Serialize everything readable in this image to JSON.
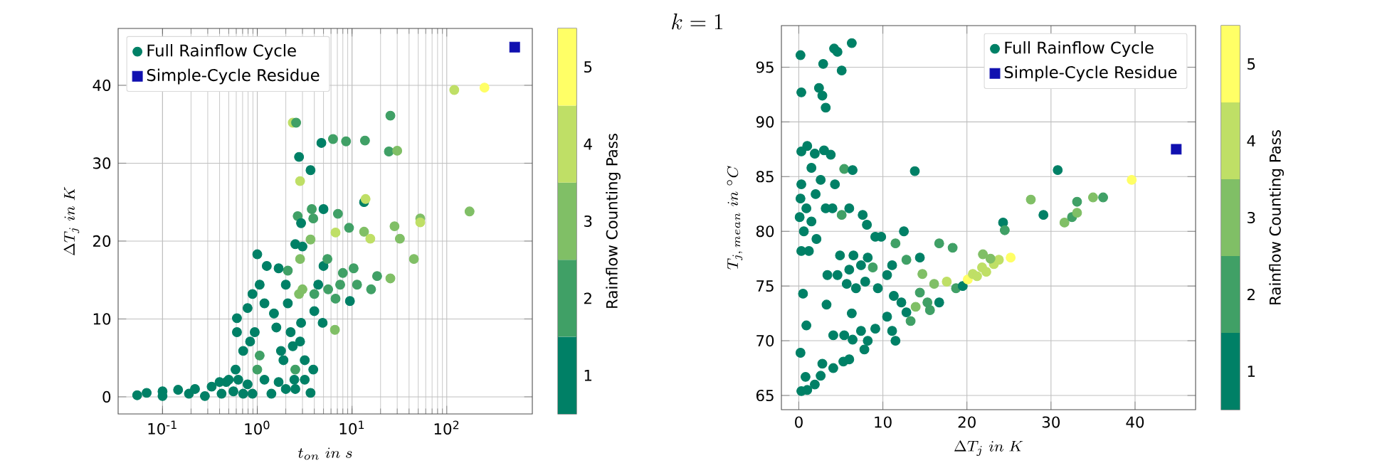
{
  "chart_data": [
    {
      "type": "scatter",
      "xlabel": "t_{on}\\ in\\ s",
      "ylabel": "\\Delta T_{j}\\ in\\ K",
      "clabel": "Rainflow Counting Pass",
      "log": "x",
      "grid": true,
      "legend": "top left",
      "xlim": [
        0.034,
        800
      ],
      "xticks": [
        {
          "value": 0.1,
          "label": "10$^{-1}$"
        },
        {
          "value": 1,
          "label": "10$^{0}$"
        },
        {
          "value": 10,
          "label": "10$^{1}$"
        },
        {
          "value": 100,
          "label": "10$^{2}$"
        }
      ],
      "ylim": [
        -2.2,
        47.3
      ],
      "yticks": [
        0,
        10,
        20,
        30,
        40
      ],
      "clim": [
        0.5,
        5.5
      ],
      "cticks": [
        1,
        2,
        3,
        4,
        5
      ],
      "series": [
        {
          "name": "Full Rainflow Cycle",
          "type": "scatter",
          "marker": "circle",
          "x": [
            0.054,
            0.068,
            0.1,
            0.1,
            0.146,
            0.19,
            0.22,
            0.28,
            0.33,
            0.42,
            0.47,
            0.56,
            0.63,
            0.71,
            0.79,
            0.89,
            1.19,
            1.41,
            1.68,
            2.0,
            2.46,
            0.5,
            0.4,
            0.59,
            0.61,
            0.61,
            0.71,
            0.79,
            0.89,
            1.0,
            1.06,
            0.94,
            1.06,
            1.0,
            0.84,
            1.19,
            1.26,
            1.5,
            1.59,
            1.78,
            1.89,
            2.0,
            2.1,
            1.68,
            2.1,
            2.25,
            2.37,
            2.52,
            2.52,
            2.52,
            2.67,
            2.76,
            2.83,
            2.83,
            2.76,
            2.37,
            2.57,
            2.9,
            3.0,
            3.0,
            2.9,
            2.83,
            3.17,
            3.17,
            3.65,
            3.76,
            3.9,
            3.65,
            3.9,
            3.65,
            4.0,
            4.0,
            4.75,
            5.0,
            5.0,
            5.5,
            4.9,
            4.4,
            5.6,
            6.3,
            6.7,
            6.6,
            7.1,
            6.7,
            7.5,
            8.0,
            8.65,
            9.3,
            9.5,
            10.4,
            11.3,
            13.4,
            13.9,
            13.7,
            13.4,
            15.6,
            15.9,
            18.4,
            25.4,
            24.5,
            30,
            25.4,
            28.1,
            32,
            45,
            52.5,
            52.5,
            174,
            120,
            250
          ],
          "values": [
            0.2,
            0.5,
            0.7,
            0.1,
            0.9,
            0.4,
            1.0,
            0.1,
            1.3,
            0.4,
            1.9,
            0.7,
            2.2,
            0.4,
            1.6,
            0.4,
            2.2,
            0.4,
            1.9,
            1.0,
            2.2,
            2.2,
            1.9,
            3.5,
            8.3,
            10.1,
            5.9,
            11.4,
            13.2,
            18.3,
            14.4,
            8.3,
            5.3,
            3.5,
            7.1,
            12.0,
            16.8,
            10.7,
            8.9,
            5.9,
            4.7,
            14.4,
            16.2,
            16.5,
            12.0,
            8.3,
            6.5,
            3.5,
            1.0,
            19.6,
            23.2,
            13.2,
            17.7,
            27.7,
            30.8,
            35.2,
            35.2,
            22.3,
            19.3,
            13.8,
            9.5,
            7.1,
            4.7,
            2.2,
            29.1,
            24.1,
            22.9,
            20.2,
            3.5,
            0.5,
            11.0,
            13.2,
            32.6,
            24.1,
            16.8,
            17.7,
            9.5,
            14.4,
            13.8,
            33.1,
            12.6,
            8.6,
            23.5,
            21.1,
            14.4,
            15.9,
            32.8,
            21.7,
            12.3,
            16.5,
            14.4,
            25.0,
            25.4,
            32.9,
            21.2,
            20.3,
            13.8,
            15.5,
            36.1,
            31.5,
            31.6,
            15.2,
            21.9,
            20.3,
            17.7,
            22.9,
            22.4,
            23.8,
            39.4,
            39.7
          ],
          "colors": [
            "#008066",
            "#008066",
            "#008066",
            "#008066",
            "#008066",
            "#008066",
            "#008066",
            "#008066",
            "#008066",
            "#008066",
            "#008066",
            "#008066",
            "#008066",
            "#008066",
            "#008066",
            "#008066",
            "#008066",
            "#008066",
            "#008066",
            "#008066",
            "#008066",
            "#008066",
            "#008066",
            "#008066",
            "#008066",
            "#008066",
            "#008066",
            "#008066",
            "#008066",
            "#008066",
            "#008066",
            "#008066",
            "#40a066",
            "#40a066",
            "#008066",
            "#008066",
            "#008066",
            "#008066",
            "#008066",
            "#008066",
            "#008066",
            "#008066",
            "#40a066",
            "#008066",
            "#008066",
            "#008066",
            "#008066",
            "#40a066",
            "#008066",
            "#008066",
            "#40a066",
            "#80bf66",
            "#80bf66",
            "#bfdf66",
            "#008066",
            "#bfdf66",
            "#40a066",
            "#008066",
            "#008066",
            "#80bf66",
            "#008066",
            "#008066",
            "#008066",
            "#008066",
            "#008066",
            "#40a066",
            "#40a066",
            "#80bf66",
            "#008066",
            "#008066",
            "#008066",
            "#40a066",
            "#008066",
            "#008066",
            "#008066",
            "#40a066",
            "#008066",
            "#008066",
            "#40a066",
            "#40a066",
            "#40a066",
            "#80bf66",
            "#40a066",
            "#bfdf66",
            "#40a066",
            "#40a066",
            "#40a066",
            "#40a066",
            "#008066",
            "#40a066",
            "#40a066",
            "#008066",
            "#bfdf66",
            "#40a066",
            "#80bf66",
            "#bfdf66",
            "#40a066",
            "#40a066",
            "#40a066",
            "#40a066",
            "#80bf66",
            "#80bf66",
            "#80bf66",
            "#80bf66",
            "#80bf66",
            "#80bf66",
            "#bfdf66",
            "#80bf66",
            "#bfdf66",
            "#ffff66"
          ]
        },
        {
          "name": "Simple-Cycle Residue",
          "type": "scatter",
          "marker": "square",
          "color": "#1010b0",
          "x": [
            521
          ],
          "values": [
            44.9
          ]
        }
      ]
    },
    {
      "type": "scatter",
      "title": "k = 1",
      "xlabel": "\\Delta T_{j}\\ in\\ K",
      "ylabel": "T_{j,\\, mean}\\ in\\ {}^{\\circ}C",
      "clabel": "Rainflow Counting Pass",
      "grid": true,
      "legend": "top right",
      "xlim": [
        -2.07,
        47.2
      ],
      "xticks": [
        0,
        10,
        20,
        30,
        40
      ],
      "ylim": [
        63.7,
        98.8
      ],
      "yticks": [
        65,
        70,
        75,
        80,
        85,
        90,
        95
      ],
      "clim": [
        0.5,
        5.5
      ],
      "cticks": [
        1,
        2,
        3,
        4,
        5
      ],
      "series": [
        {
          "name": "Full Rainflow Cycle",
          "type": "scatter",
          "marker": "circle",
          "x": [
            0.2,
            0.3,
            6.3,
            4.2,
            4.6,
            2.9,
            5.1,
            2.4,
            2.8,
            3.2,
            0.3,
            1.0,
            1.9,
            3.0,
            3.8,
            5.4,
            6.4,
            13.8,
            0.3,
            1.5,
            2.6,
            4.3,
            0.2,
            0.9,
            2.0,
            3.2,
            4.0,
            5.1,
            6.0,
            0.1,
            0.6,
            1.5,
            2.1,
            0.3,
            1.2,
            7.6,
            8.1,
            9.1,
            9.8,
            12.5,
            11.5,
            4.9,
            6.5,
            8.2,
            8.8,
            3.4,
            4.6,
            6.0,
            7.4,
            5.7,
            6.8,
            7.9,
            9.4,
            10.5,
            11.1,
            12.8,
            14.4,
            16.7,
            18.3,
            0.5,
            0.9,
            3.3,
            4.1,
            5.4,
            6.4,
            7.4,
            7.8,
            8.2,
            9.1,
            10.5,
            11.1,
            11.5,
            6.3,
            0.2,
            0.8,
            0.3,
            1.0,
            1.9,
            2.8,
            2.6,
            4.1,
            5.3,
            6.0,
            11.3,
            12.2,
            12.8,
            13.3,
            13.9,
            14.4,
            15.3,
            15.6,
            16.7,
            14.7,
            16.1,
            17.6,
            18.7,
            19.5,
            20.1,
            20.7,
            21.2,
            21.8,
            22.3,
            23.2,
            23.8,
            25.2,
            21.9,
            22.8,
            24.3,
            24.5,
            27.6,
            29.1,
            30.8,
            31.6,
            32.5,
            33.1,
            33.1,
            35.0,
            36.2,
            39.6
          ],
          "values": [
            96.1,
            92.7,
            97.2,
            96.7,
            96.4,
            95.3,
            94.7,
            93.1,
            92.4,
            91.3,
            87.3,
            87.8,
            87.1,
            87.4,
            87.0,
            85.7,
            85.6,
            85.5,
            84.3,
            85.8,
            84.7,
            84.3,
            83.0,
            82.1,
            83.4,
            82.1,
            82.1,
            81.5,
            82.1,
            81.3,
            80.0,
            80.9,
            79.3,
            78.2,
            78.2,
            81.5,
            80.6,
            79.5,
            79.5,
            80.0,
            78.9,
            77.8,
            77.8,
            77.6,
            76.7,
            76.0,
            76.0,
            76.5,
            76.9,
            75.2,
            74.8,
            75.4,
            74.8,
            76.0,
            76.9,
            77.4,
            77.6,
            78.9,
            78.5,
            74.3,
            71.4,
            73.3,
            70.5,
            70.5,
            70.1,
            70.9,
            69.2,
            70.0,
            71.1,
            72.2,
            70.9,
            70.0,
            72.5,
            68.9,
            66.7,
            65.4,
            65.5,
            66.0,
            67.9,
            66.8,
            67.5,
            68.1,
            68.3,
            74.1,
            73.5,
            72.6,
            71.8,
            73.1,
            74.4,
            73.5,
            72.8,
            73.5,
            76.1,
            75.2,
            75.4,
            74.8,
            75.0,
            75.6,
            76.1,
            75.9,
            76.7,
            76.3,
            77.0,
            77.4,
            77.6,
            77.9,
            77.5,
            80.8,
            80.1,
            82.9,
            81.5,
            85.6,
            80.8,
            81.3,
            81.7,
            82.7,
            83.1,
            83.1,
            84.7
          ],
          "colors": [
            "#008066",
            "#008066",
            "#008066",
            "#008066",
            "#008066",
            "#008066",
            "#008066",
            "#008066",
            "#008066",
            "#008066",
            "#008066",
            "#008066",
            "#008066",
            "#008066",
            "#008066",
            "#40a066",
            "#008066",
            "#008066",
            "#008066",
            "#008066",
            "#008066",
            "#008066",
            "#008066",
            "#008066",
            "#008066",
            "#008066",
            "#008066",
            "#40a066",
            "#008066",
            "#008066",
            "#008066",
            "#008066",
            "#008066",
            "#008066",
            "#008066",
            "#008066",
            "#008066",
            "#008066",
            "#008066",
            "#008066",
            "#40a066",
            "#008066",
            "#008066",
            "#008066",
            "#40a066",
            "#008066",
            "#008066",
            "#008066",
            "#008066",
            "#008066",
            "#008066",
            "#008066",
            "#008066",
            "#008066",
            "#008066",
            "#40a066",
            "#008066",
            "#40a066",
            "#40a066",
            "#008066",
            "#008066",
            "#008066",
            "#008066",
            "#008066",
            "#008066",
            "#008066",
            "#008066",
            "#008066",
            "#008066",
            "#008066",
            "#008066",
            "#008066",
            "#008066",
            "#008066",
            "#008066",
            "#008066",
            "#008066",
            "#008066",
            "#008066",
            "#008066",
            "#008066",
            "#008066",
            "#008066",
            "#008066",
            "#008066",
            "#008066",
            "#40a066",
            "#80bf66",
            "#40a066",
            "#40a066",
            "#40a066",
            "#008066",
            "#80bf66",
            "#80bf66",
            "#bfdf66",
            "#40a066",
            "#008066",
            "#ffff66",
            "#bfdf66",
            "#bfdf66",
            "#bfdf66",
            "#bfdf66",
            "#bfdf66",
            "#bfdf66",
            "#ffff66",
            "#80bf66",
            "#80bf66",
            "#008066",
            "#40a066",
            "#80bf66",
            "#008066",
            "#008066",
            "#80bf66",
            "#40a066",
            "#80bf66",
            "#40a066",
            "#80bf66",
            "#40a066",
            "#ffff66"
          ]
        },
        {
          "name": "Simple-Cycle Residue",
          "type": "scatter",
          "marker": "square",
          "color": "#1010b0",
          "x": [
            44.9
          ],
          "values": [
            87.5
          ]
        }
      ]
    }
  ]
}
